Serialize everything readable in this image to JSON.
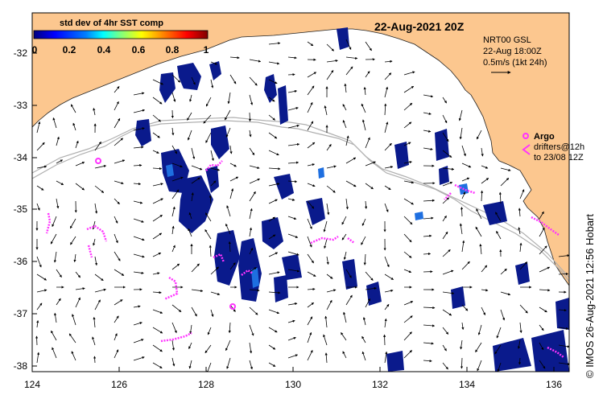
{
  "map": {
    "title": "22-Aug-2021 20Z",
    "colorbar": {
      "title": "std dev of 4hr SST comp",
      "ticks": [
        "0",
        "0.2",
        "0.4",
        "0.6",
        "0.8",
        "1"
      ],
      "colors": [
        "#00007f",
        "#0000ff",
        "#007fff",
        "#00ffff",
        "#7fff7f",
        "#ffff00",
        "#ff7f00",
        "#ff0000",
        "#7f0000"
      ]
    },
    "current_info": {
      "line1": "NRT00 GSL",
      "line2": "22-Aug 18:00Z",
      "line3": "0.5m/s (1kt 24h)"
    },
    "argo_label": "Argo",
    "drifter_line1": "drifters@12h",
    "drifter_line2": "to 23/08 12Z",
    "credit": "© IMOS 26-Aug-2021 12:56 Hobart",
    "lon_ticks": [
      "124",
      "126",
      "128",
      "130",
      "132",
      "134",
      "136"
    ],
    "lat_ticks": [
      "-32",
      "-33",
      "-34",
      "-35",
      "-36",
      "-37",
      "-38"
    ],
    "colors": {
      "land": "#fcc78f",
      "sst_patch": "#0a1a8c",
      "argo": "#ff33ff",
      "drifter": "#ff33ff",
      "contour": "#b0b0b0"
    }
  }
}
